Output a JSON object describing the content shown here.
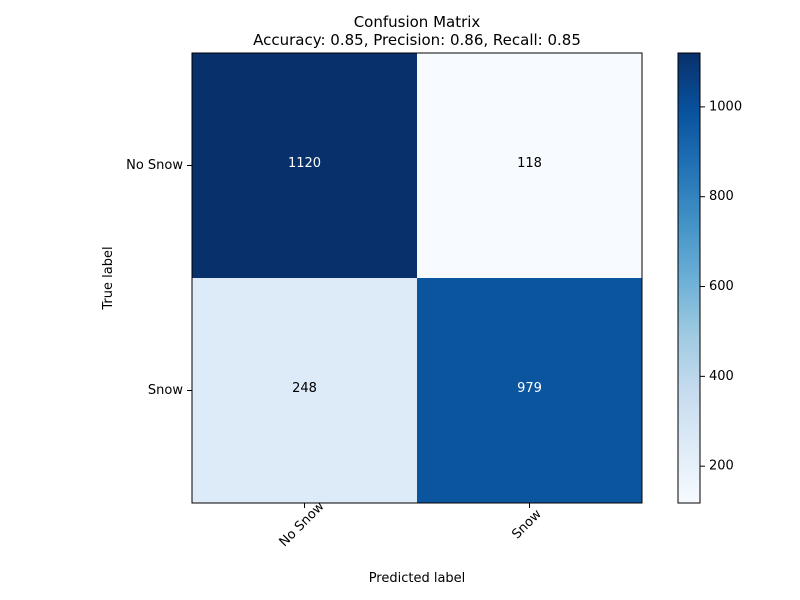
{
  "chart_data": {
    "type": "heatmap",
    "title": "Confusion Matrix",
    "subtitle": "Accuracy: 0.85, Precision: 0.86, Recall: 0.85",
    "xlabel": "Predicted label",
    "ylabel": "True label",
    "x_categories": [
      "No Snow",
      "Snow"
    ],
    "y_categories": [
      "No Snow",
      "Snow"
    ],
    "values": [
      [
        1120,
        118
      ],
      [
        248,
        979
      ]
    ],
    "colorbar": {
      "min": 118,
      "max": 1120,
      "ticks": [
        200,
        400,
        600,
        800,
        1000
      ]
    },
    "colormap": "Blues",
    "colors": {
      "low": "#f7fbff",
      "high": "#08306b",
      "text_on_dark": "#ffffff",
      "text_on_light": "#000000"
    }
  }
}
